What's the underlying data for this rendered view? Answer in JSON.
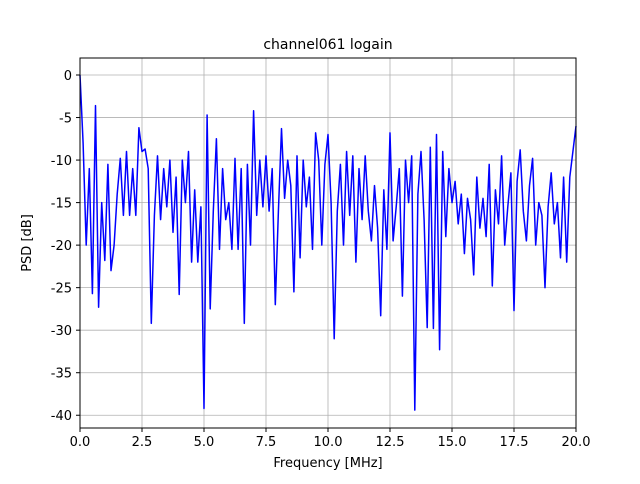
{
  "chart_data": {
    "type": "line",
    "title": "channel061 logain",
    "x_label": "Frequency [MHz]",
    "y_label": "PSD [dB]",
    "x": [
      0,
      0.125,
      0.25,
      0.375,
      0.5,
      0.625,
      0.75,
      0.875,
      1,
      1.125,
      1.25,
      1.375,
      1.5,
      1.625,
      1.75,
      1.875,
      2,
      2.125,
      2.25,
      2.375,
      2.5,
      2.625,
      2.75,
      2.875,
      3,
      3.125,
      3.25,
      3.375,
      3.5,
      3.625,
      3.75,
      3.875,
      4,
      4.125,
      4.25,
      4.375,
      4.5,
      4.625,
      4.75,
      4.875,
      5,
      5.125,
      5.25,
      5.375,
      5.5,
      5.625,
      5.75,
      5.875,
      6,
      6.125,
      6.25,
      6.375,
      6.5,
      6.625,
      6.75,
      6.875,
      7,
      7.125,
      7.25,
      7.375,
      7.5,
      7.625,
      7.75,
      7.875,
      8,
      8.125,
      8.25,
      8.375,
      8.5,
      8.625,
      8.75,
      8.875,
      9,
      9.125,
      9.25,
      9.375,
      9.5,
      9.625,
      9.75,
      9.875,
      10,
      10.125,
      10.25,
      10.375,
      10.5,
      10.625,
      10.75,
      10.875,
      11,
      11.125,
      11.25,
      11.375,
      11.5,
      11.625,
      11.75,
      11.875,
      12,
      12.125,
      12.25,
      12.375,
      12.5,
      12.625,
      12.75,
      12.875,
      13,
      13.125,
      13.25,
      13.375,
      13.5,
      13.625,
      13.75,
      13.875,
      14,
      14.125,
      14.25,
      14.375,
      14.5,
      14.625,
      14.75,
      14.875,
      15,
      15.125,
      15.25,
      15.375,
      15.5,
      15.625,
      15.75,
      15.875,
      16,
      16.125,
      16.25,
      16.375,
      16.5,
      16.625,
      16.75,
      16.875,
      17,
      17.125,
      17.25,
      17.375,
      17.5,
      17.625,
      17.75,
      17.875,
      18,
      18.125,
      18.25,
      18.375,
      18.5,
      18.625,
      18.75,
      18.875,
      19,
      19.125,
      19.25,
      19.375,
      19.5,
      19.625,
      19.75,
      19.875,
      20
    ],
    "series": [
      {
        "color": "#0000ff",
        "values": [
          0,
          -8,
          -20,
          -11,
          -25.7,
          -3.6,
          -27.3,
          -15,
          -21.8,
          -10.5,
          -23,
          -20,
          -14,
          -9.8,
          -16.5,
          -9,
          -16.5,
          -11,
          -16.5,
          -6.2,
          -9,
          -8.7,
          -11,
          -29.2,
          -16.5,
          -9.5,
          -17,
          -11,
          -15.5,
          -10,
          -18.5,
          -12,
          -25.8,
          -10,
          -15,
          -9,
          -22,
          -13.5,
          -22,
          -15.5,
          -39.2,
          -4.7,
          -27.5,
          -16,
          -7.5,
          -20.5,
          -11,
          -17,
          -15,
          -20.5,
          -9.8,
          -20.5,
          -11,
          -29.2,
          -10.5,
          -20,
          -4.2,
          -16.5,
          -10,
          -15.5,
          -9.5,
          -16,
          -11,
          -27,
          -16,
          -6.3,
          -14.5,
          -10,
          -13,
          -25.5,
          -9.5,
          -21.5,
          -10,
          -15.5,
          -12,
          -20.5,
          -6.8,
          -10,
          -20,
          -10.5,
          -7,
          -15,
          -31,
          -16,
          -10.5,
          -20,
          -9,
          -16.5,
          -9.5,
          -22,
          -11,
          -17,
          -9.5,
          -16,
          -19.5,
          -13,
          -18,
          -28.3,
          -13.5,
          -20.5,
          -6.8,
          -19.5,
          -15.5,
          -11,
          -26,
          -10,
          -15,
          -9.5,
          -39.4,
          -14,
          -9,
          -17,
          -29.7,
          -8.5,
          -29.8,
          -7,
          -32.3,
          -9,
          -19,
          -11,
          -15,
          -12.5,
          -17.5,
          -14,
          -21,
          -14.5,
          -17,
          -23.5,
          -12,
          -18,
          -14.5,
          -19,
          -10.5,
          -24.8,
          -13.5,
          -17.5,
          -9.5,
          -20,
          -15.5,
          -11.5,
          -27.7,
          -12.5,
          -8.8,
          -16,
          -19.5,
          -13,
          -9.8,
          -20,
          -15,
          -16.5,
          -25,
          -15.5,
          -11.5,
          -17.5,
          -15,
          -21.5,
          -12,
          -22,
          -12,
          -9,
          -6
        ]
      }
    ],
    "xlim": [
      0,
      20
    ],
    "ylim": [
      -41.5,
      2
    ],
    "xticks": [
      {
        "value": 0,
        "label": "0.0"
      },
      2.5,
      {
        "value": 5,
        "label": "5.0"
      },
      7.5,
      {
        "value": 10,
        "label": "10.0"
      },
      12.5,
      {
        "value": 15,
        "label": "15.0"
      },
      17.5,
      {
        "value": 20,
        "label": "20.0"
      }
    ],
    "yticks": [
      0,
      -5,
      -10,
      -15,
      -20,
      -25,
      -30,
      -35,
      -40
    ],
    "grid": true
  }
}
